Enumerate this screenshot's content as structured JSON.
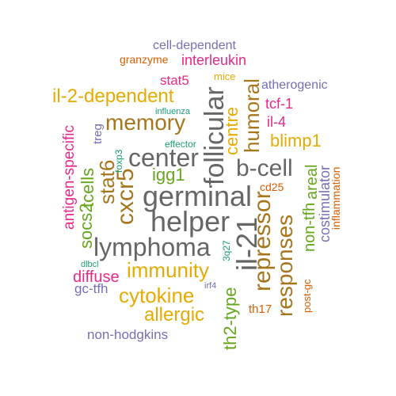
{
  "word_cloud": {
    "colors": {
      "teal": "#1b9e77",
      "orange": "#d95f02",
      "purple": "#7570b3",
      "magenta": "#e7298a",
      "green": "#66a61e",
      "gold": "#e6ab02",
      "brown": "#a6761d",
      "gray": "#666666"
    },
    "words": [
      {
        "text": "cell-dependent"
      },
      {
        "text": "granzyme"
      },
      {
        "text": "interleukin"
      },
      {
        "text": "mice"
      },
      {
        "text": "atherogenic"
      },
      {
        "text": "il-2-dependent"
      },
      {
        "text": "stat5"
      },
      {
        "text": "tcf-1"
      },
      {
        "text": "memory"
      },
      {
        "text": "influenza"
      },
      {
        "text": "il-4"
      },
      {
        "text": "blimp1"
      },
      {
        "text": "effector"
      },
      {
        "text": "center"
      },
      {
        "text": "b-cell"
      },
      {
        "text": "igg1"
      },
      {
        "text": "cd25"
      },
      {
        "text": "germinal"
      },
      {
        "text": "helper"
      },
      {
        "text": "lymphoma"
      },
      {
        "text": "immunity"
      },
      {
        "text": "diffuse"
      },
      {
        "text": "gc-tfh"
      },
      {
        "text": "cytokine"
      },
      {
        "text": "allergic"
      },
      {
        "text": "non-hodgkins"
      },
      {
        "text": "th17"
      },
      {
        "text": "post-gc"
      },
      {
        "text": "dlbcl"
      },
      {
        "text": "irf4"
      },
      {
        "text": "follicular"
      },
      {
        "text": "humoral"
      },
      {
        "text": "centre"
      },
      {
        "text": "il-21"
      },
      {
        "text": "repressor"
      },
      {
        "text": "responses"
      },
      {
        "text": "th2-type"
      },
      {
        "text": "3q27"
      },
      {
        "text": "stat6"
      },
      {
        "text": "cxcr5"
      },
      {
        "text": "tcells"
      },
      {
        "text": "socs2"
      },
      {
        "text": "foxp3"
      },
      {
        "text": "treg"
      },
      {
        "text": "antigen-specific"
      },
      {
        "text": "non-tfh"
      },
      {
        "text": "areal"
      },
      {
        "text": "costimulator"
      },
      {
        "text": "inflammation"
      }
    ]
  }
}
